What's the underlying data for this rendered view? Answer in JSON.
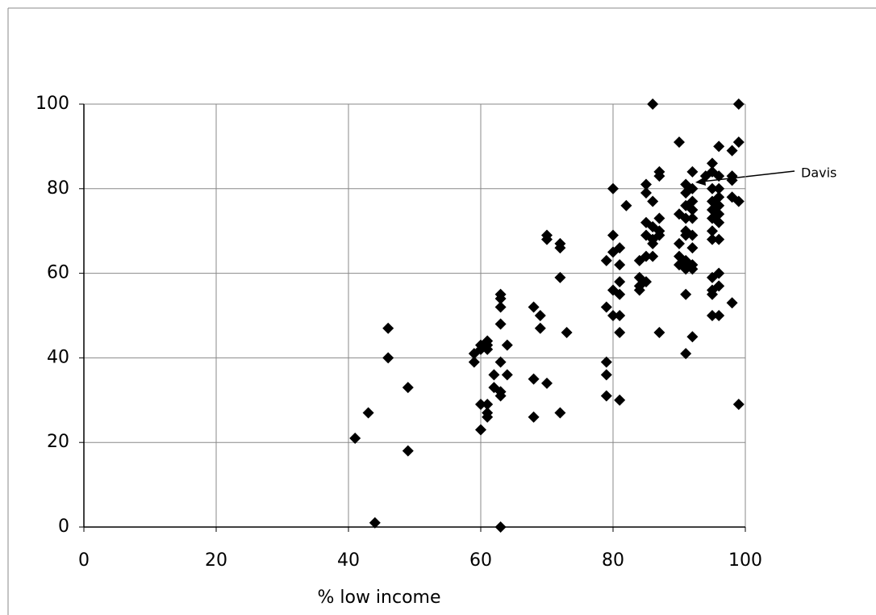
{
  "chart_data": {
    "type": "scatter",
    "x_label": "% low income",
    "x": [
      41,
      43,
      44,
      46,
      46,
      49,
      49,
      59,
      59,
      60,
      60,
      61,
      61,
      61,
      60,
      60,
      61,
      61,
      61,
      62,
      62,
      63,
      63,
      63,
      63,
      63,
      63,
      63,
      64,
      64,
      63,
      68,
      68,
      68,
      69,
      69,
      70,
      70,
      70,
      72,
      72,
      72,
      72,
      73,
      79,
      79,
      79,
      79,
      79,
      80,
      80,
      80,
      80,
      80,
      81,
      81,
      81,
      81,
      81,
      81,
      81,
      82,
      84,
      84,
      84,
      84,
      85,
      85,
      85,
      85,
      85,
      85,
      86,
      86,
      86,
      86,
      86,
      86,
      87,
      87,
      87,
      87,
      87,
      87,
      90,
      90,
      90,
      90,
      90,
      91,
      91,
      91,
      91,
      91,
      91,
      91,
      91,
      91,
      91,
      92,
      92,
      92,
      92,
      92,
      92,
      92,
      92,
      92,
      92,
      94,
      95,
      95,
      95,
      95,
      95,
      95,
      95,
      95,
      95,
      95,
      95,
      95,
      96,
      96,
      96,
      96,
      96,
      96,
      96,
      96,
      96,
      96,
      96,
      98,
      98,
      98,
      98,
      98,
      99,
      99,
      99,
      99
    ],
    "values": [
      21,
      27,
      1,
      47,
      40,
      33,
      18,
      41,
      39,
      42,
      43,
      43,
      44,
      42,
      29,
      23,
      27,
      26,
      29,
      33,
      36,
      32,
      31,
      39,
      48,
      52,
      54,
      55,
      43,
      36,
      0,
      52,
      35,
      26,
      50,
      47,
      69,
      68,
      34,
      67,
      66,
      59,
      27,
      46,
      63,
      52,
      39,
      36,
      31,
      80,
      69,
      65,
      56,
      50,
      66,
      62,
      58,
      55,
      50,
      46,
      30,
      76,
      63,
      59,
      57,
      56,
      81,
      79,
      72,
      69,
      64,
      58,
      100,
      77,
      71,
      68,
      67,
      64,
      84,
      83,
      73,
      70,
      69,
      46,
      91,
      74,
      67,
      64,
      62,
      81,
      79,
      76,
      73,
      70,
      69,
      63,
      61,
      55,
      41,
      84,
      80,
      77,
      75,
      73,
      69,
      66,
      62,
      61,
      45,
      83,
      86,
      84,
      80,
      77,
      75,
      73,
      70,
      68,
      59,
      56,
      55,
      50,
      90,
      83,
      80,
      78,
      76,
      74,
      72,
      68,
      60,
      57,
      50,
      89,
      83,
      82,
      78,
      53,
      100,
      91,
      77,
      29
    ],
    "color": "#000000",
    "xlim": [
      0,
      100
    ],
    "ylim": [
      0,
      100
    ],
    "xticks": [
      0,
      20,
      40,
      60,
      80,
      100
    ],
    "yticks": [
      0,
      20,
      40,
      60,
      80,
      100
    ],
    "grid": true,
    "annotations": [
      {
        "text": "Davis"
      }
    ]
  }
}
